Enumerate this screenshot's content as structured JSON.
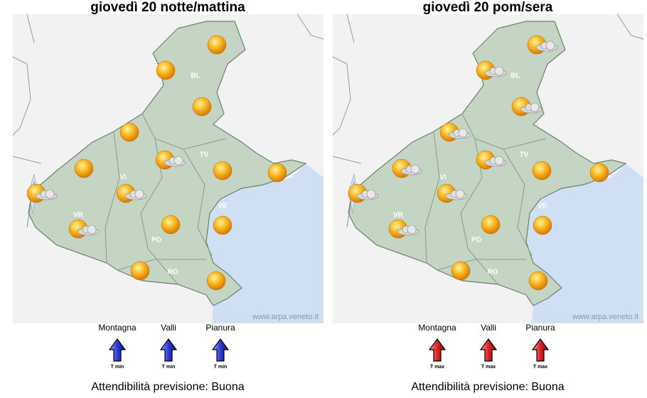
{
  "panels": [
    {
      "title": "giovedì 20 notte/mattina",
      "provinces": [
        "BL",
        "TV",
        "VI",
        "VR",
        "VE",
        "PD",
        "RO"
      ],
      "watermark": "www.arpa.veneto.it",
      "trends": [
        {
          "zone": "Montagna",
          "measure": "T min"
        },
        {
          "zone": "Valli",
          "measure": "T min"
        },
        {
          "zone": "Pianura",
          "measure": "T min"
        }
      ],
      "reliability": "Attendibilità previsione: Buona"
    },
    {
      "title": "giovedì 20 pom/sera",
      "provinces": [
        "BL",
        "TV",
        "VI",
        "VR",
        "VE",
        "PD",
        "RO"
      ],
      "watermark": "www.arpa.veneto.it",
      "trends": [
        {
          "zone": "Montagna",
          "measure": "T max"
        },
        {
          "zone": "Valli",
          "measure": "T max"
        },
        {
          "zone": "Pianura",
          "measure": "T max"
        }
      ],
      "reliability": "Attendibilità previsione: Buona"
    }
  ]
}
